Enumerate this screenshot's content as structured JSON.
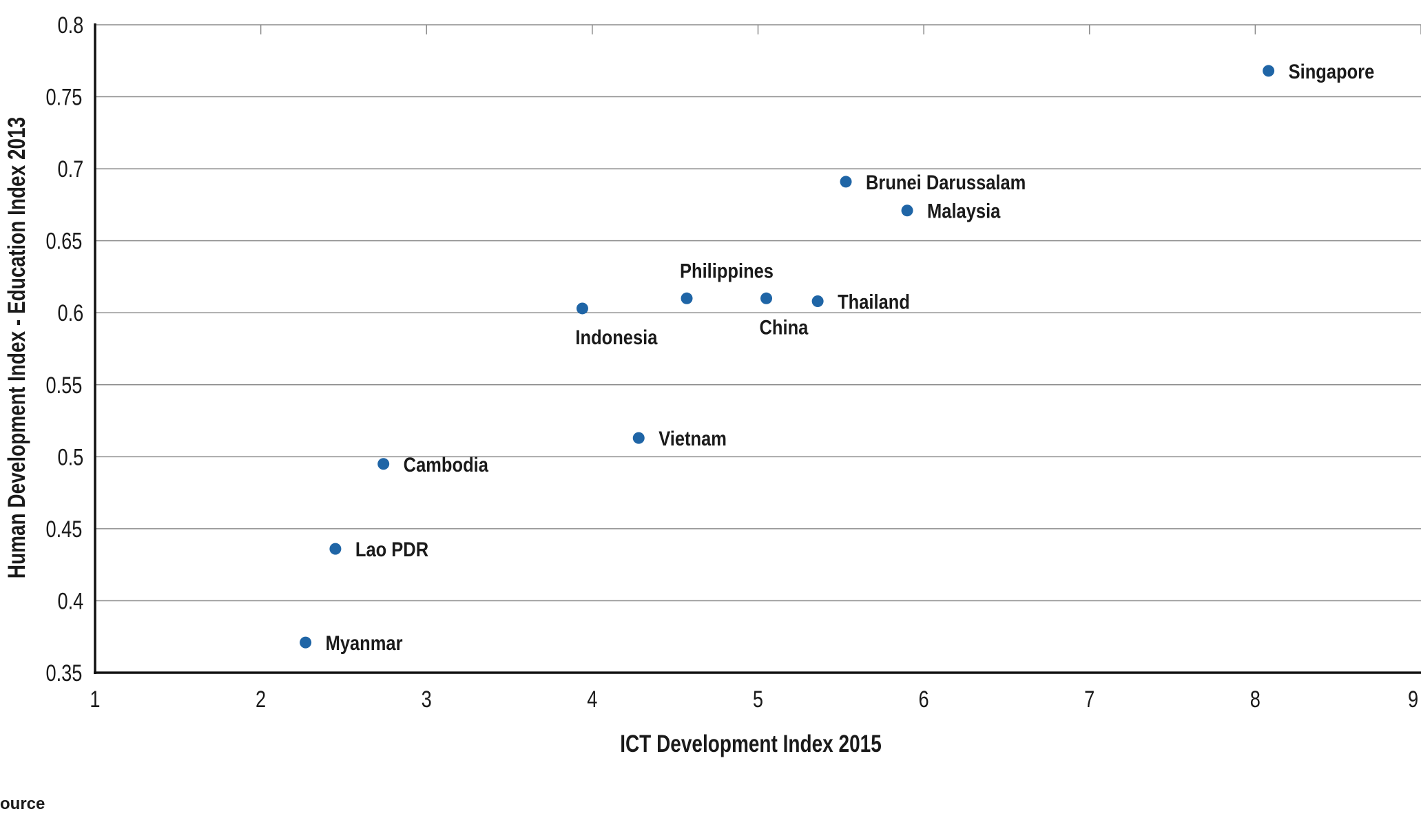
{
  "colors": {
    "point": "#1f65a6",
    "grid": "#8c8c8c",
    "axis": "#111111",
    "text": "#1a1a1a"
  },
  "source_label": "ource",
  "chart_data": {
    "type": "scatter",
    "title": "",
    "xlabel": "ICT Development Index 2015",
    "ylabel": "Human Development Index - Education Index 2013",
    "xlim": [
      1,
      9
    ],
    "ylim": [
      0.35,
      0.8
    ],
    "x_ticks": [
      1,
      2,
      3,
      4,
      5,
      6,
      7,
      8,
      9
    ],
    "y_ticks": [
      0.35,
      0.4,
      0.45,
      0.5,
      0.55,
      0.6,
      0.65,
      0.7,
      0.75,
      0.8
    ],
    "grid": "horizontal",
    "legend": "none",
    "points": [
      {
        "label": "Singapore",
        "x": 8.08,
        "y": 0.768,
        "label_side": "right"
      },
      {
        "label": "Brunei Darussalam",
        "x": 5.53,
        "y": 0.691,
        "label_side": "right"
      },
      {
        "label": "Malaysia",
        "x": 5.9,
        "y": 0.671,
        "label_side": "right"
      },
      {
        "label": "Philippines",
        "x": 4.57,
        "y": 0.61,
        "label_side": "above"
      },
      {
        "label": "China",
        "x": 5.05,
        "y": 0.61,
        "label_side": "below"
      },
      {
        "label": "Thailand",
        "x": 5.36,
        "y": 0.608,
        "label_side": "right"
      },
      {
        "label": "Indonesia",
        "x": 3.94,
        "y": 0.603,
        "label_side": "below"
      },
      {
        "label": "Vietnam",
        "x": 4.28,
        "y": 0.513,
        "label_side": "right"
      },
      {
        "label": "Cambodia",
        "x": 2.74,
        "y": 0.495,
        "label_side": "right"
      },
      {
        "label": "Lao PDR",
        "x": 2.45,
        "y": 0.436,
        "label_side": "right"
      },
      {
        "label": "Myanmar",
        "x": 2.27,
        "y": 0.371,
        "label_side": "right"
      }
    ]
  }
}
